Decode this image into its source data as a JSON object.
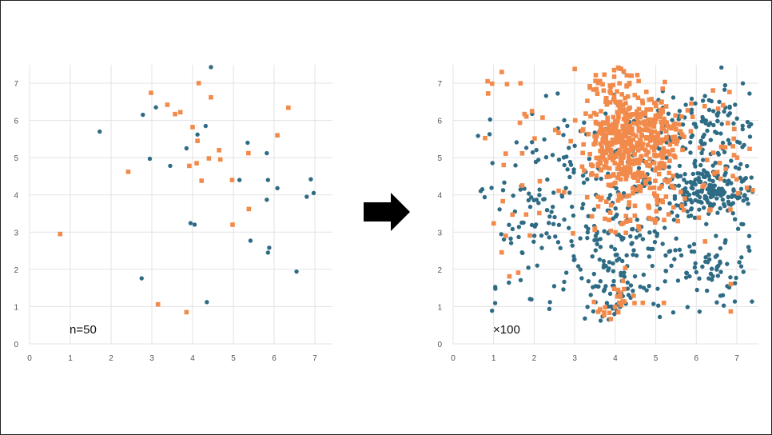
{
  "chart_data": [
    {
      "type": "scatter",
      "title": "",
      "xlabel": "",
      "ylabel": "",
      "xlim": [
        0,
        7.5
      ],
      "ylim": [
        0,
        7.5
      ],
      "xticks": [
        "0",
        "1",
        "2",
        "3",
        "4",
        "5",
        "6",
        "7"
      ],
      "yticks": [
        "0",
        "1",
        "2",
        "3",
        "4",
        "5",
        "6",
        "7"
      ],
      "grid": true,
      "annotation": "n=50",
      "series": [
        {
          "marker": "circle",
          "color": "#2e6b84",
          "points": [
            [
              1.72,
              5.7
            ],
            [
              2.78,
              6.15
            ],
            [
              2.95,
              4.97
            ],
            [
              3.1,
              6.35
            ],
            [
              3.45,
              4.78
            ],
            [
              3.85,
              5.25
            ],
            [
              3.95,
              3.24
            ],
            [
              4.05,
              3.2
            ],
            [
              4.12,
              5.62
            ],
            [
              4.32,
              5.85
            ],
            [
              4.45,
              7.43
            ],
            [
              4.35,
              1.12
            ],
            [
              2.75,
              1.76
            ],
            [
              5.15,
              4.4
            ],
            [
              5.35,
              5.4
            ],
            [
              5.42,
              2.77
            ],
            [
              5.82,
              5.12
            ],
            [
              5.85,
              4.4
            ],
            [
              5.82,
              3.87
            ],
            [
              5.85,
              2.45
            ],
            [
              5.88,
              2.58
            ],
            [
              6.08,
              4.18
            ],
            [
              6.55,
              1.94
            ],
            [
              6.8,
              3.95
            ],
            [
              6.9,
              4.42
            ],
            [
              6.97,
              4.05
            ]
          ]
        },
        {
          "marker": "square",
          "color": "#f28a4c",
          "points": [
            [
              0.75,
              2.95
            ],
            [
              2.42,
              4.62
            ],
            [
              2.98,
              6.74
            ],
            [
              3.38,
              6.42
            ],
            [
              3.57,
              6.17
            ],
            [
              3.7,
              6.22
            ],
            [
              3.92,
              4.78
            ],
            [
              4.0,
              5.82
            ],
            [
              4.12,
              5.45
            ],
            [
              4.15,
              7.0
            ],
            [
              4.22,
              4.38
            ],
            [
              4.4,
              4.98
            ],
            [
              4.45,
              6.62
            ],
            [
              4.65,
              5.2
            ],
            [
              4.68,
              4.95
            ],
            [
              4.97,
              4.4
            ],
            [
              4.98,
              3.2
            ],
            [
              5.37,
              5.12
            ],
            [
              5.38,
              3.62
            ],
            [
              6.08,
              5.6
            ],
            [
              6.35,
              6.34
            ],
            [
              3.15,
              1.06
            ],
            [
              3.85,
              0.85
            ],
            [
              4.1,
              4.85
            ]
          ]
        }
      ]
    },
    {
      "type": "scatter",
      "title": "",
      "xlabel": "",
      "ylabel": "",
      "xlim": [
        0,
        7.5
      ],
      "ylim": [
        0,
        7.5
      ],
      "xticks": [
        "0",
        "1",
        "2",
        "3",
        "4",
        "5",
        "6",
        "7"
      ],
      "yticks": [
        "0",
        "1",
        "2",
        "3",
        "4",
        "5",
        "6",
        "7"
      ],
      "grid": true,
      "annotation": "×100",
      "series": [
        {
          "marker": "circle",
          "color": "#2e6b84",
          "clusters": [
            {
              "cx": 4.0,
              "cy": 3.0,
              "sx": 1.6,
              "sy": 1.6,
              "count": 220
            },
            {
              "cx": 6.4,
              "cy": 4.1,
              "sx": 0.55,
              "sy": 0.3,
              "count": 140
            },
            {
              "cx": 6.4,
              "cy": 5.8,
              "sx": 0.6,
              "sy": 0.55,
              "count": 80
            },
            {
              "cx": 4.1,
              "cy": 1.6,
              "sx": 0.35,
              "sy": 0.55,
              "count": 50
            },
            {
              "cx": 6.4,
              "cy": 2.0,
              "sx": 0.55,
              "sy": 0.45,
              "count": 45
            },
            {
              "cx": 2.2,
              "cy": 4.0,
              "sx": 1.1,
              "sy": 1.2,
              "count": 70
            },
            {
              "cx": 5.5,
              "cy": 4.5,
              "sx": 1.2,
              "sy": 1.4,
              "count": 110
            }
          ],
          "points": [
            [
              0.9,
              5.63
            ],
            [
              6.62,
              7.42
            ],
            [
              3.98,
              0.8
            ],
            [
              5.1,
              0.72
            ],
            [
              0.72,
              4.15
            ]
          ]
        },
        {
          "marker": "square",
          "color": "#f28a4c",
          "clusters": [
            {
              "cx": 4.0,
              "cy": 5.3,
              "sx": 0.35,
              "sy": 0.55,
              "count": 220
            },
            {
              "cx": 4.9,
              "cy": 5.3,
              "sx": 0.35,
              "sy": 0.6,
              "count": 160
            },
            {
              "cx": 4.6,
              "cy": 6.0,
              "sx": 0.6,
              "sy": 0.35,
              "count": 90
            },
            {
              "cx": 4.0,
              "cy": 7.0,
              "sx": 0.35,
              "sy": 0.3,
              "count": 40
            },
            {
              "cx": 4.5,
              "cy": 3.8,
              "sx": 0.6,
              "sy": 0.5,
              "count": 70
            },
            {
              "cx": 4.0,
              "cy": 1.0,
              "sx": 0.25,
              "sy": 0.35,
              "count": 25
            },
            {
              "cx": 6.8,
              "cy": 4.8,
              "sx": 0.6,
              "sy": 1.5,
              "count": 35
            },
            {
              "cx": 1.5,
              "cy": 4.7,
              "sx": 0.6,
              "sy": 1.6,
              "count": 30
            }
          ],
          "points": [
            [
              0.85,
              7.05
            ],
            [
              1.2,
              7.3
            ],
            [
              3.0,
              7.38
            ],
            [
              6.85,
              0.87
            ],
            [
              5.2,
              1.1
            ],
            [
              1.3,
              2.9
            ]
          ]
        }
      ]
    }
  ]
}
